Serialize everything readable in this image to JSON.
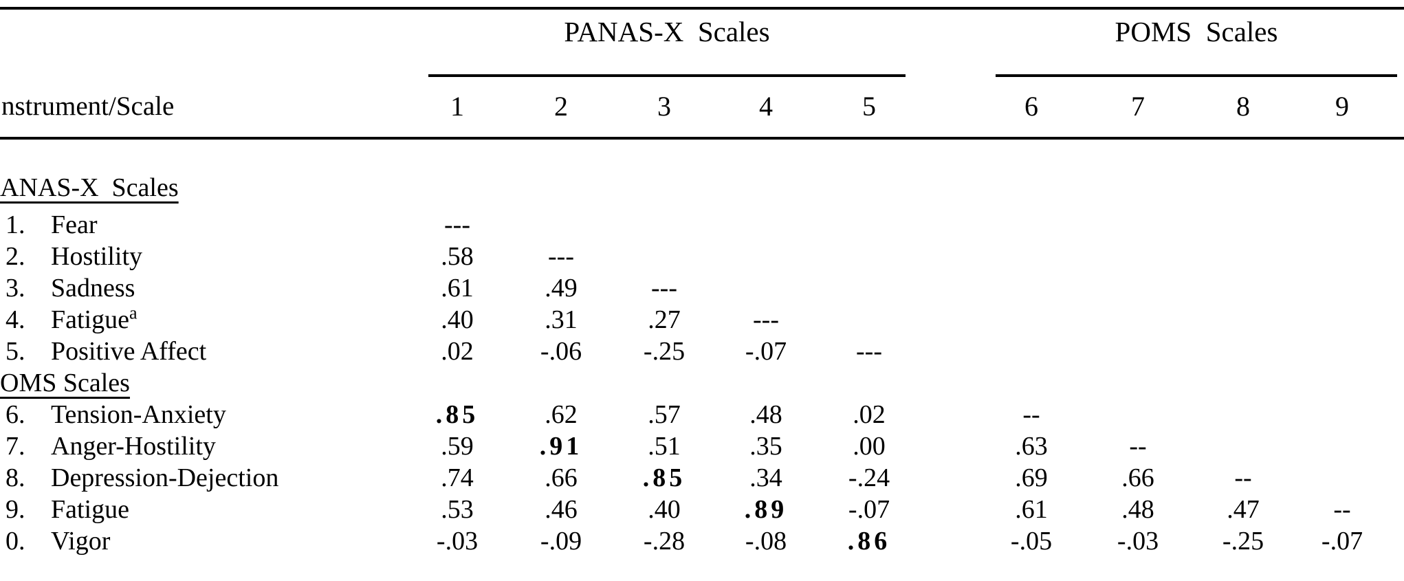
{
  "colors": {
    "text": "#000000",
    "background": "#ffffff",
    "rule": "#000000"
  },
  "header": {
    "row_label": "nstrument/Scale",
    "group1_label": "PANAS-X  Scales",
    "group2_label": "POMS  Scales",
    "cols": {
      "c1": "1",
      "c2": "2",
      "c3": "3",
      "c4": "4",
      "c5": "5",
      "c6": "6",
      "c7": "7",
      "c8": "8",
      "c9": "9"
    }
  },
  "body": {
    "section1_label": "ANAS-X  Scales",
    "section2_label": "OMS Scales",
    "rows": [
      {
        "num": "1.",
        "name": "Fear",
        "c1": "---"
      },
      {
        "num": "2.",
        "name": "Hostility",
        "c1": ".58",
        "c2": "---"
      },
      {
        "num": "3.",
        "name": "Sadness",
        "c1": ".61",
        "c2": ".49",
        "c3": "---"
      },
      {
        "num": "4.",
        "name": "Fatigue",
        "sup": "a",
        "c1": ".40",
        "c2": ".31",
        "c3": ".27",
        "c4": "---"
      },
      {
        "num": "5.",
        "name": "Positive Affect",
        "c1": ".02",
        "c2": "-.06",
        "c3": "-.25",
        "c4": "-.07",
        "c5": "---"
      },
      {
        "num": "6.",
        "name": "Tension-Anxiety",
        "c1": ".85",
        "c2": ".62",
        "c3": ".57",
        "c4": ".48",
        "c5": ".02",
        "c6": "--"
      },
      {
        "num": "7.",
        "name": "Anger-Hostility",
        "c1": ".59",
        "c2": ".91",
        "c3": ".51",
        "c4": ".35",
        "c5": ".00",
        "c6": ".63",
        "c7": "--"
      },
      {
        "num": "8.",
        "name": "Depression-Dejection",
        "c1": ".74",
        "c2": ".66",
        "c3": ".85",
        "c4": ".34",
        "c5": "-.24",
        "c6": ".69",
        "c7": ".66",
        "c8": "--"
      },
      {
        "num": "9.",
        "name": "Fatigue",
        "c1": ".53",
        "c2": ".46",
        "c3": ".40",
        "c4": ".89",
        "c5": "-.07",
        "c6": ".61",
        "c7": ".48",
        "c8": ".47",
        "c9": "--"
      },
      {
        "num": "0.",
        "name": "Vigor",
        "c1": "-.03",
        "c2": "-.09",
        "c3": "-.28",
        "c4": "-.08",
        "c5": ".86",
        "c6": "-.05",
        "c7": "-.03",
        "c8": "-.25",
        "c9": "-.07"
      }
    ]
  }
}
